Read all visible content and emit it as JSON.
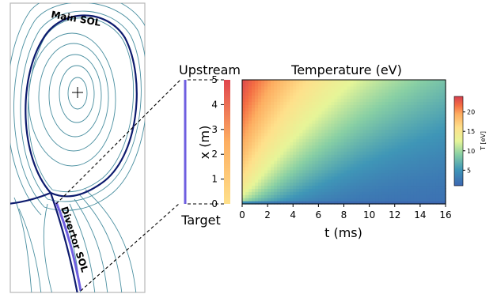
{
  "diagram": {
    "labels": {
      "main_sol": "Main SOL",
      "divertor_sol": "Divertor SOL",
      "upstream": "Upstream",
      "target": "Target"
    }
  },
  "chart_data": {
    "type": "heatmap",
    "title": "Temperature (eV)",
    "xlabel": "t (ms)",
    "ylabel": "x (m)",
    "xlim": [
      0,
      16
    ],
    "ylim": [
      0,
      5
    ],
    "x_ticks": [
      "0",
      "2",
      "4",
      "6",
      "8",
      "10",
      "12",
      "14",
      "16"
    ],
    "y_ticks": [
      "0",
      "1",
      "2",
      "3",
      "4",
      "5"
    ],
    "colorbar": {
      "label": "T [eV]",
      "range": [
        1,
        24
      ],
      "ticks": [
        "5",
        "10",
        "15",
        "20"
      ],
      "colormap": "Spectral_r"
    },
    "initial_profile": {
      "description_values": [
        {
          "x": 0,
          "T": 10
        },
        {
          "x": 1,
          "T": 13
        },
        {
          "x": 2,
          "T": 15
        },
        {
          "x": 3,
          "T": 18
        },
        {
          "x": 4,
          "T": 20
        },
        {
          "x": 5,
          "T": 22
        }
      ]
    },
    "field_samples": [
      {
        "t": 0.2,
        "x": 5,
        "T": 22
      },
      {
        "t": 2,
        "x": 5,
        "T": 17
      },
      {
        "t": 6,
        "x": 5,
        "T": 12
      },
      {
        "t": 16,
        "x": 5,
        "T": 8
      },
      {
        "t": 2,
        "x": 0.5,
        "T": 10
      },
      {
        "t": 8,
        "x": 0.5,
        "T": 3
      },
      {
        "t": 16,
        "x": 0.5,
        "T": 2
      }
    ]
  }
}
